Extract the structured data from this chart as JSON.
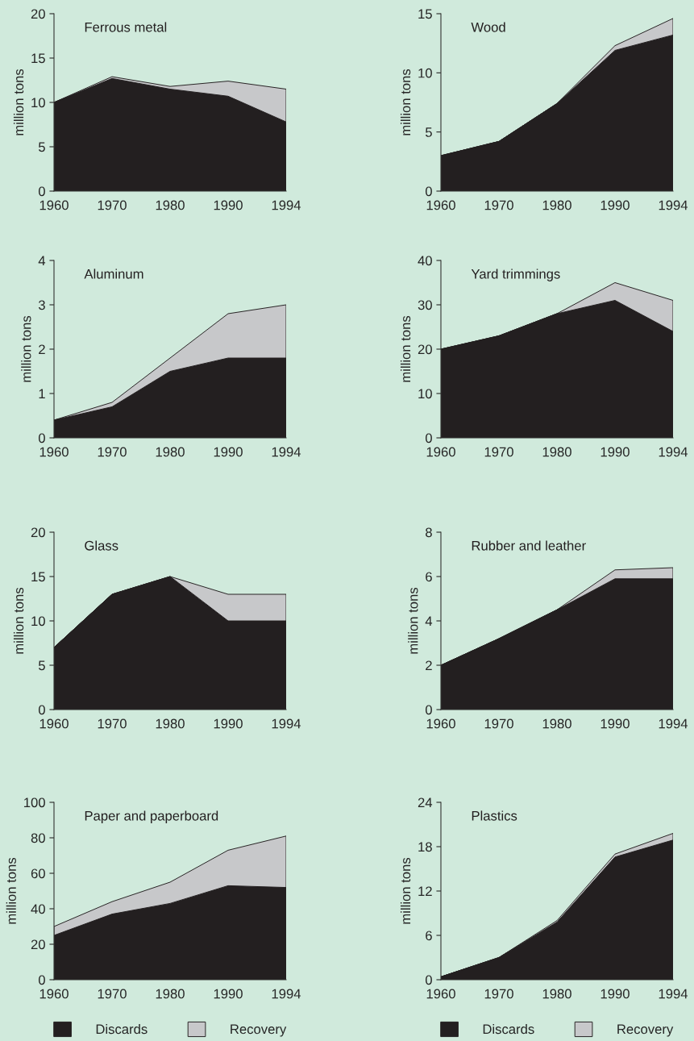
{
  "chart_data": [
    {
      "type": "area",
      "stacked": true,
      "title": "Ferrous metal",
      "ylabel": "million tons",
      "categories": [
        "1960",
        "1970",
        "1980",
        "1990",
        "1994"
      ],
      "ylim": [
        0,
        20
      ],
      "yticks": [
        0,
        5,
        10,
        15,
        20
      ],
      "grid": false,
      "legend": false,
      "series": [
        {
          "color": "#231f20",
          "values": [
            10,
            12.7,
            11.5,
            10.7,
            7.8
          ]
        },
        {
          "color": "#c7c8ca",
          "values": [
            0,
            0.2,
            0.3,
            1.7,
            3.7
          ]
        }
      ]
    },
    {
      "type": "area",
      "stacked": true,
      "title": "Wood",
      "ylabel": "million tons",
      "categories": [
        "1960",
        "1970",
        "1980",
        "1990",
        "1994"
      ],
      "ylim": [
        0,
        15
      ],
      "yticks": [
        0,
        5,
        10,
        15
      ],
      "grid": false,
      "legend": false,
      "series": [
        {
          "color": "#231f20",
          "values": [
            3.0,
            4.2,
            7.4,
            11.9,
            13.2
          ]
        },
        {
          "color": "#c7c8ca",
          "values": [
            0,
            0,
            0,
            0.4,
            1.4
          ]
        }
      ]
    },
    {
      "type": "area",
      "stacked": true,
      "title": "Aluminum",
      "ylabel": "million tons",
      "categories": [
        "1960",
        "1970",
        "1980",
        "1990",
        "1994"
      ],
      "ylim": [
        0,
        4
      ],
      "yticks": [
        0,
        1,
        2,
        3,
        4
      ],
      "grid": false,
      "legend": false,
      "series": [
        {
          "color": "#231f20",
          "values": [
            0.4,
            0.7,
            1.5,
            1.8,
            1.8
          ]
        },
        {
          "color": "#c7c8ca",
          "values": [
            0,
            0.1,
            0.3,
            1.0,
            1.2
          ]
        }
      ]
    },
    {
      "type": "area",
      "stacked": true,
      "title": "Yard trimmings",
      "ylabel": "million tons",
      "categories": [
        "1960",
        "1970",
        "1980",
        "1990",
        "1994"
      ],
      "ylim": [
        0,
        40
      ],
      "yticks": [
        0,
        10,
        20,
        30,
        40
      ],
      "grid": false,
      "legend": false,
      "series": [
        {
          "color": "#231f20",
          "values": [
            20,
            23,
            28,
            31,
            24
          ]
        },
        {
          "color": "#c7c8ca",
          "values": [
            0,
            0,
            0,
            4,
            7
          ]
        }
      ]
    },
    {
      "type": "area",
      "stacked": true,
      "title": "Glass",
      "ylabel": "million tons",
      "categories": [
        "1960",
        "1970",
        "1980",
        "1990",
        "1994"
      ],
      "ylim": [
        0,
        20
      ],
      "yticks": [
        0,
        5,
        10,
        15,
        20
      ],
      "grid": false,
      "legend": false,
      "series": [
        {
          "color": "#231f20",
          "values": [
            7,
            13,
            15,
            10,
            10
          ]
        },
        {
          "color": "#c7c8ca",
          "values": [
            0,
            0,
            0,
            3,
            3
          ]
        }
      ]
    },
    {
      "type": "area",
      "stacked": true,
      "title": "Rubber and leather",
      "ylabel": "million tons",
      "categories": [
        "1960",
        "1970",
        "1980",
        "1990",
        "1994"
      ],
      "ylim": [
        0,
        8
      ],
      "yticks": [
        0,
        2,
        4,
        6,
        8
      ],
      "grid": false,
      "legend": false,
      "series": [
        {
          "color": "#231f20",
          "values": [
            2.0,
            3.2,
            4.5,
            5.9,
            5.9
          ]
        },
        {
          "color": "#c7c8ca",
          "values": [
            0,
            0,
            0,
            0.4,
            0.5
          ]
        }
      ]
    },
    {
      "type": "area",
      "stacked": true,
      "title": "Paper and paperboard",
      "ylabel": "million tons",
      "categories": [
        "1960",
        "1970",
        "1980",
        "1990",
        "1994"
      ],
      "ylim": [
        0,
        100
      ],
      "yticks": [
        0,
        20,
        40,
        60,
        80,
        100
      ],
      "grid": false,
      "legend": "bottom",
      "series": [
        {
          "name": "Discards",
          "color": "#231f20",
          "values": [
            25,
            37,
            43,
            53,
            52
          ]
        },
        {
          "name": "Recovery",
          "color": "#c7c8ca",
          "values": [
            5,
            7,
            12,
            20,
            29
          ]
        }
      ]
    },
    {
      "type": "area",
      "stacked": true,
      "title": "Plastics",
      "ylabel": "million tons",
      "categories": [
        "1960",
        "1970",
        "1980",
        "1990",
        "1994"
      ],
      "ylim": [
        0,
        24
      ],
      "yticks": [
        0,
        6,
        12,
        18,
        24
      ],
      "grid": false,
      "legend": "bottom",
      "series": [
        {
          "name": "Discards",
          "color": "#231f20",
          "values": [
            0.4,
            3,
            7.8,
            16.6,
            18.9
          ]
        },
        {
          "name": "Recovery",
          "color": "#c7c8ca",
          "values": [
            0,
            0,
            0.2,
            0.4,
            0.9
          ]
        }
      ]
    }
  ]
}
